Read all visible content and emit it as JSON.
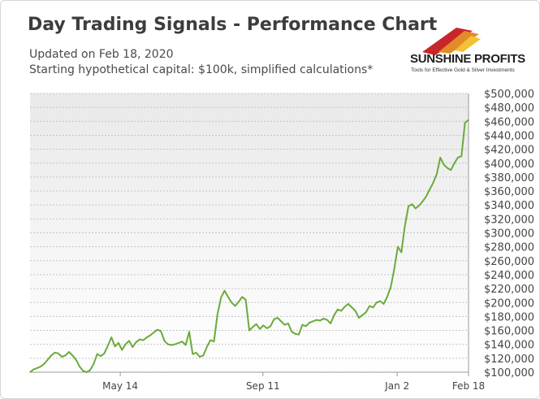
{
  "header": {
    "title": "Day Trading Signals - Performance Chart",
    "updated": "Updated on Feb 18, 2020",
    "capital_note": "Starting hypothetical capital: $100k, simplified calculations*"
  },
  "logo": {
    "name": "SUNSHINE PROFITS",
    "tagline": "Tools for Effective Gold & Silver Investments",
    "colors": [
      "#c9262c",
      "#e28b2a",
      "#f2c136"
    ]
  },
  "chart_data": {
    "type": "line",
    "title": "Day Trading Signals - Performance Chart",
    "xlabel": "",
    "ylabel": "",
    "ylim": [
      100000,
      500000
    ],
    "y_axis_position": "right",
    "grid": true,
    "legend": "none",
    "line_color": "#6aaa3a",
    "x_tick_labels": [
      {
        "label": "May 14",
        "index": 21.5
      },
      {
        "label": "Sep 11",
        "index": 55.5
      },
      {
        "label": "Jan 2",
        "index": 87.5
      },
      {
        "label": "Feb 18",
        "index": 104.5
      }
    ],
    "y_tick_labels": [
      "$100,000",
      "$120,000",
      "$140,000",
      "$160,000",
      "$180,000",
      "$200,000",
      "$220,000",
      "$240,000",
      "$260,000",
      "$280,000",
      "$300,000",
      "$320,000",
      "$340,000",
      "$360,000",
      "$380,000",
      "$400,000",
      "$420,000",
      "$440,000",
      "$460,000",
      "$480,000",
      "$500,000"
    ],
    "series": [
      {
        "values": [
          100000,
          104000,
          106000,
          108000,
          112000,
          118000,
          124000,
          128000,
          127000,
          122000,
          124000,
          129000,
          124000,
          118000,
          108000,
          102000,
          100000,
          103000,
          112000,
          126000,
          123000,
          127000,
          138000,
          150000,
          137000,
          142000,
          132000,
          140000,
          145000,
          136000,
          143000,
          147000,
          146000,
          150000,
          153000,
          157000,
          161000,
          159000,
          145000,
          140000,
          139000,
          140000,
          142000,
          144000,
          139000,
          158000,
          126000,
          128000,
          122000,
          124000,
          136000,
          146000,
          144000,
          183000,
          207000,
          217000,
          208000,
          200000,
          195000,
          201000,
          208000,
          204000,
          160000,
          165000,
          169000,
          162000,
          167000,
          163000,
          166000,
          176000,
          178000,
          173000,
          168000,
          170000,
          158000,
          155000,
          154000,
          168000,
          166000,
          171000,
          173000,
          175000,
          174000,
          177000,
          175000,
          170000,
          182000,
          190000,
          188000,
          194000,
          198000,
          193000,
          188000,
          178000,
          182000,
          186000,
          195000,
          193000,
          200000,
          202000,
          198000,
          208000,
          222000,
          248000,
          280000,
          272000,
          310000,
          338000,
          341000,
          335000,
          339000,
          345000,
          352000,
          362000,
          372000,
          384000,
          408000,
          398000,
          393000,
          390000,
          400000,
          408000,
          410000,
          458000,
          462000
        ]
      }
    ]
  }
}
